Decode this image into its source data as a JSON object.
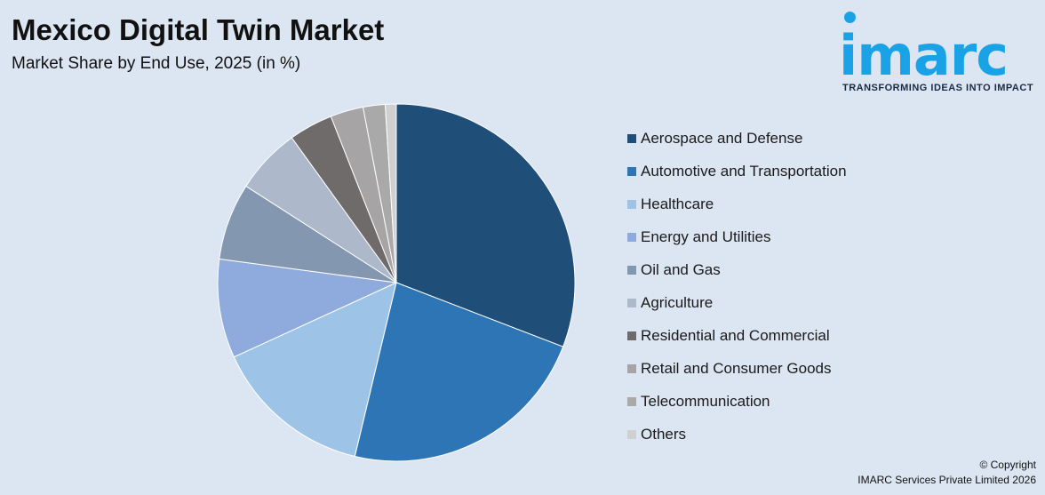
{
  "header": {
    "title": "Mexico Digital Twin Market",
    "subtitle": "Market Share by End Use, 2025 (in %)"
  },
  "logo": {
    "wordmark": "imarc",
    "tagline": "TRANSFORMING IDEAS INTO IMPACT",
    "color": "#19a3e6"
  },
  "chart_data": {
    "type": "pie",
    "title": "Mexico Digital Twin Market",
    "subtitle": "Market Share by End Use, 2025 (in %)",
    "legend_position": "right",
    "start_angle_deg": 0,
    "direction": "clockwise",
    "slices": [
      {
        "label": "Aerospace and Defense",
        "value": 31,
        "color": "#1f4e79"
      },
      {
        "label": "Automotive and Transportation",
        "value": 23,
        "color": "#2e75b6"
      },
      {
        "label": "Healthcare",
        "value": 14.5,
        "color": "#9dc3e6"
      },
      {
        "label": "Energy and Utilities",
        "value": 9,
        "color": "#8faadc"
      },
      {
        "label": "Oil and Gas",
        "value": 7,
        "color": "#8497b0"
      },
      {
        "label": "Agriculture",
        "value": 6,
        "color": "#adb9ca"
      },
      {
        "label": "Residential and Commercial",
        "value": 4,
        "color": "#6f6b6b"
      },
      {
        "label": "Retail and Consumer Goods",
        "value": 3,
        "color": "#a6a4a4"
      },
      {
        "label": "Telecommunication",
        "value": 2,
        "color": "#a9a9a9"
      },
      {
        "label": "Others",
        "value": 1,
        "color": "#d0d0d0"
      }
    ]
  },
  "footer": {
    "copyright_line1": "© Copyright",
    "copyright_line2": "IMARC Services Private Limited 2026"
  }
}
